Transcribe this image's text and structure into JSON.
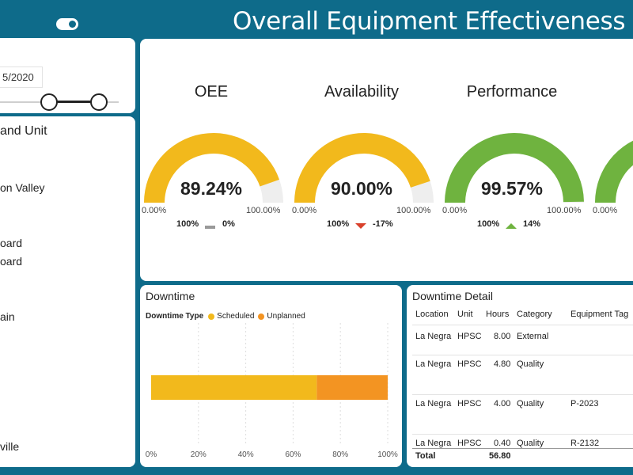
{
  "header": {
    "title": "Overall Equipment Effectiveness (OEE)"
  },
  "date_slicer": {
    "value": "5/2020"
  },
  "location_slicer": {
    "title": "and Unit",
    "items": [
      "on Valley",
      "oard",
      "oard",
      "ain",
      "ville"
    ]
  },
  "kpis": [
    {
      "title": "OEE",
      "value": "89.24%",
      "fraction": 0.8924,
      "min": "0.00%",
      "max": "100.00%",
      "target": "100%",
      "delta": "0%",
      "trend": "flat",
      "color": "#f2b91c"
    },
    {
      "title": "Availability",
      "value": "90.00%",
      "fraction": 0.9,
      "min": "0.00%",
      "max": "100.00%",
      "target": "100%",
      "delta": "-17%",
      "trend": "down",
      "color": "#f2b91c"
    },
    {
      "title": "Performance",
      "value": "99.57%",
      "fraction": 0.9957,
      "min": "0.00%",
      "max": "100.00%",
      "target": "100%",
      "delta": "14%",
      "trend": "up",
      "color": "#6fb33f"
    },
    {
      "title": "",
      "value": "",
      "fraction": 0.95,
      "min": "0.00%",
      "max": "",
      "target": "",
      "delta": "",
      "trend": "",
      "color": "#6fb33f"
    }
  ],
  "downtime_panel": {
    "title": "Downtime",
    "legend_title": "Downtime Type"
  },
  "chart_data": {
    "type": "bar",
    "orientation": "horizontal",
    "stacked": true,
    "percent": true,
    "series": [
      {
        "name": "Scheduled",
        "values": [
          70
        ],
        "color": "#f2b91c"
      },
      {
        "name": "Unplanned",
        "values": [
          30
        ],
        "color": "#f39422"
      }
    ],
    "xlim": [
      0,
      100
    ],
    "ticks": [
      "0%",
      "20%",
      "40%",
      "60%",
      "80%",
      "100%"
    ],
    "grid": true,
    "legend": "top-left"
  },
  "detail": {
    "title": "Downtime Detail",
    "columns": [
      "Location",
      "Unit",
      "Hours",
      "Category",
      "Equipment Tag"
    ],
    "rows": [
      [
        "La Negra",
        "HPSC",
        "8.00",
        "External",
        ""
      ],
      [
        "La Negra",
        "HPSC",
        "4.80",
        "Quality",
        ""
      ],
      [
        "La Negra",
        "HPSC",
        "4.00",
        "Quality",
        "P-2023"
      ],
      [
        "La Negra",
        "HPSC",
        "0.40",
        "Quality",
        "R-2132"
      ]
    ],
    "total_label": "Total",
    "total_hours": "56.80"
  },
  "colors": {
    "header_bg": "#0e6b8a",
    "gauge_bg": "#eeeeee",
    "down_arrow": "#d9412b",
    "up_arrow": "#6fb33f",
    "flat_bar": "#999999"
  }
}
